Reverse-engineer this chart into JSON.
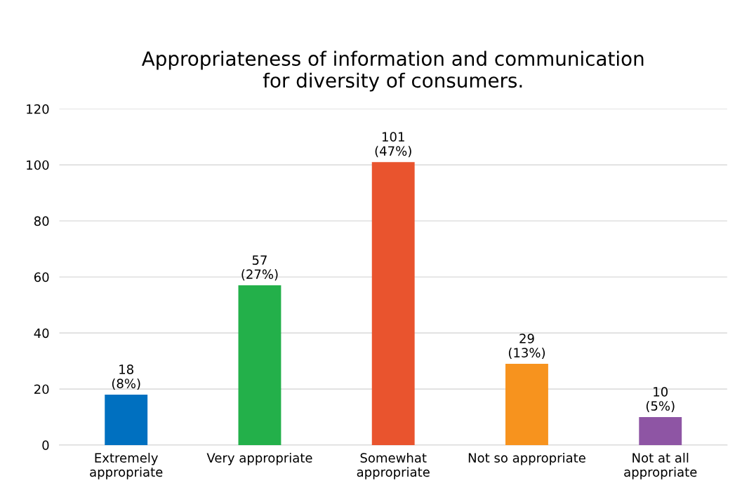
{
  "chart_data": {
    "type": "bar",
    "title": "Appropriateness of information and communication\nfor diversity of consumers.",
    "categories": [
      "Extremely\nappropriate",
      "Very appropriate",
      "Somewhat\nappropriate",
      "Not so appropriate",
      "Not at all\nappropriate"
    ],
    "values": [
      18,
      57,
      101,
      29,
      10
    ],
    "colors": [
      "#0070c0",
      "#23b04a",
      "#e9542e",
      "#f7931e",
      "#8e55a4"
    ],
    "value_labels": [
      "18\n(8%)",
      "57\n(27%)",
      "101\n(47%)",
      "29\n(13%)",
      "10\n(5%)"
    ],
    "ylim": [
      0,
      120
    ],
    "yticks": [
      0,
      20,
      40,
      60,
      80,
      100,
      120
    ],
    "grid": "y"
  }
}
